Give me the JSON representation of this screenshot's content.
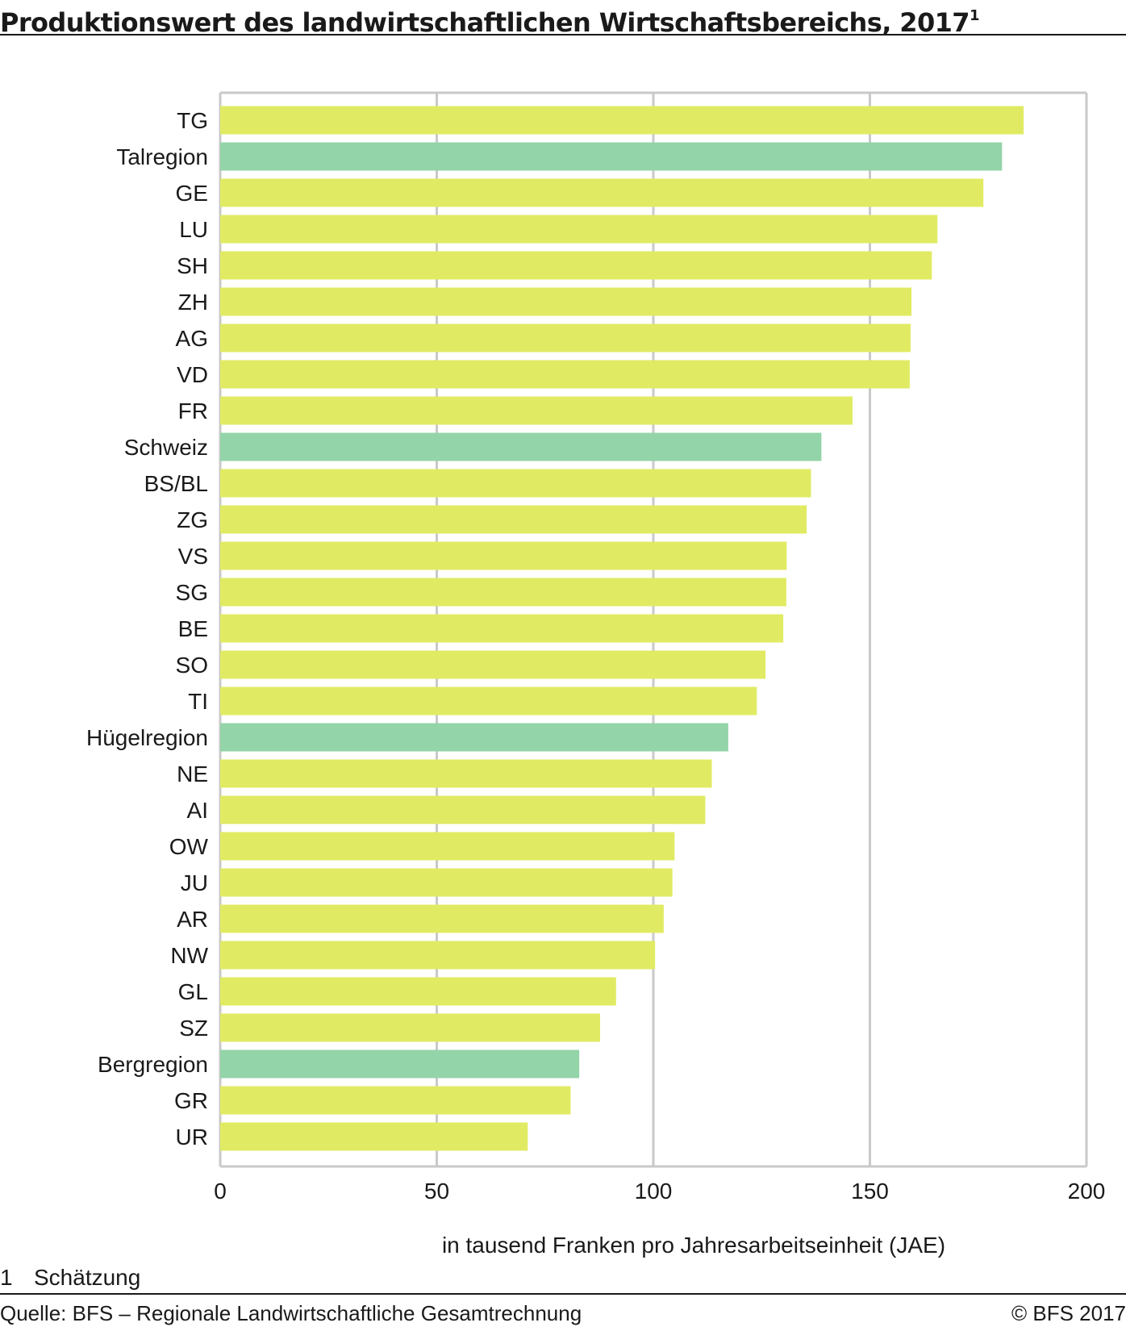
{
  "header": {
    "title": "Produktionswert des landwirtschaftlichen Wirtschaftsbereichs, 2017",
    "title_note": "1"
  },
  "chart_data": {
    "type": "bar",
    "orientation": "horizontal",
    "title": "Produktionswert des landwirtschaftlichen Wirtschaftsbereichs, 2017",
    "xlabel": "in tausend Franken pro Jahresarbeitseinheit (JAE)",
    "ylabel": "",
    "xlim": [
      0,
      200
    ],
    "xticks": [
      0,
      50,
      100,
      150,
      200
    ],
    "grid": true,
    "legend": "none",
    "categories": [
      "TG",
      "Talregion",
      "GE",
      "LU",
      "SH",
      "ZH",
      "AG",
      "VD",
      "FR",
      "Schweiz",
      "BS/BL",
      "ZG",
      "VS",
      "SG",
      "BE",
      "SO",
      "TI",
      "Hügelregion",
      "NE",
      "AI",
      "OW",
      "JU",
      "AR",
      "NW",
      "GL",
      "SZ",
      "Bergregion",
      "GR",
      "UR"
    ],
    "values": [
      185.5,
      180.5,
      176.2,
      165.6,
      164.3,
      159.6,
      159.4,
      159.2,
      146.0,
      138.8,
      136.4,
      135.4,
      130.8,
      130.7,
      130.0,
      125.9,
      123.9,
      117.3,
      113.5,
      112.0,
      104.9,
      104.4,
      102.4,
      100.4,
      91.4,
      87.7,
      82.9,
      80.9,
      71.0
    ],
    "highlight": [
      "Talregion",
      "Schweiz",
      "Hügelregion",
      "Bergregion"
    ],
    "colors": {
      "kanton": "#E0EB63",
      "region": "#93D4A8",
      "grid": "#C9C9C9",
      "axis": "#C9C9C9"
    }
  },
  "footnote": {
    "number": "1",
    "text": "Schätzung"
  },
  "footer": {
    "source": "Quelle: BFS – Regionale Landwirtschaftliche Gesamtrechnung",
    "copyright": "© BFS  2017"
  }
}
